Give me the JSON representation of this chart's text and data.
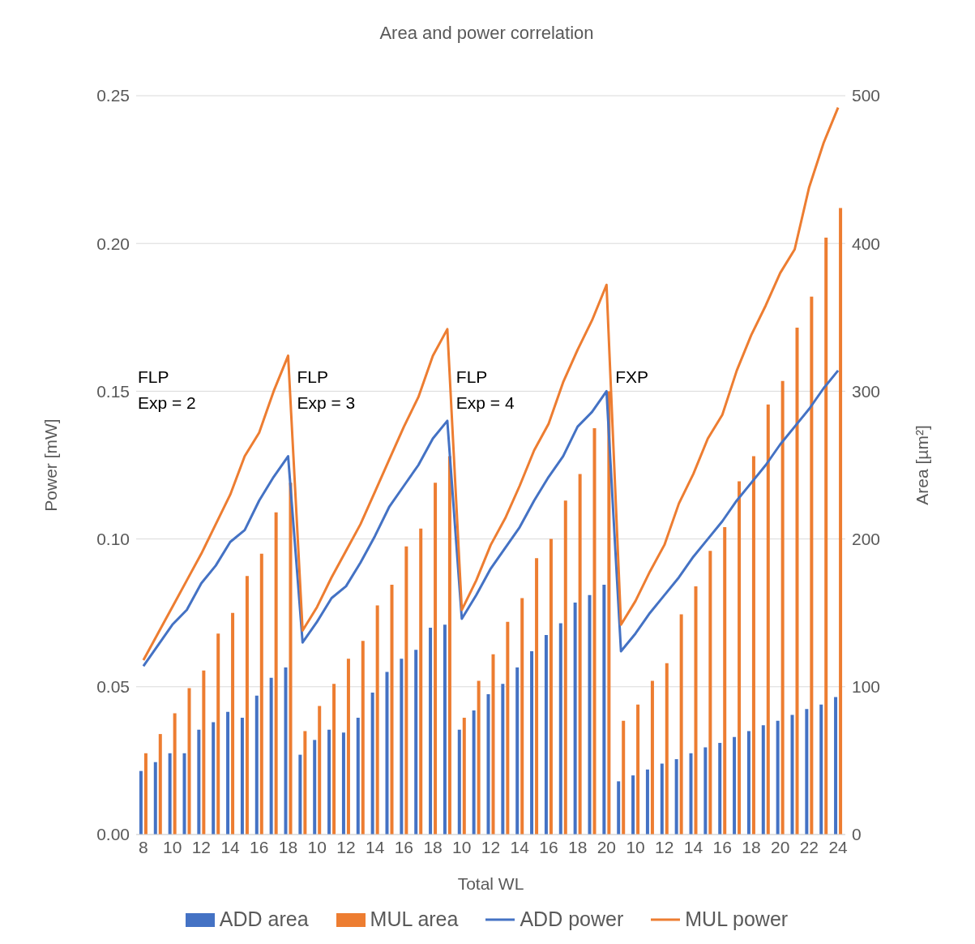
{
  "chart_data": {
    "type": "bar",
    "title": "Area and power correlation",
    "xlabel": "Total WL",
    "ylabel": "Power [mW]",
    "y2label": "Area [µm²]",
    "categories": [
      "8",
      null,
      "10",
      null,
      "12",
      null,
      "14",
      null,
      "16",
      null,
      "18",
      null,
      "10",
      null,
      "12",
      null,
      "14",
      null,
      "16",
      null,
      "18",
      null,
      "10",
      null,
      "12",
      null,
      "14",
      null,
      "16",
      null,
      "18",
      null,
      "20",
      null,
      "10",
      null,
      "12",
      null,
      "14",
      null,
      "16",
      null,
      "18",
      null,
      "20",
      null,
      "22",
      null,
      "24"
    ],
    "series": [
      {
        "name": "ADD area",
        "axis": "y2",
        "color": "#4472c4",
        "values": [
          43,
          49,
          55,
          55,
          71,
          76,
          83,
          79,
          94,
          106,
          113,
          54,
          64,
          71,
          69,
          79,
          96,
          110,
          119,
          125,
          140,
          142,
          71,
          84,
          95,
          102,
          113,
          124,
          135,
          143,
          157,
          162,
          169,
          36,
          40,
          44,
          48,
          51,
          55,
          59,
          62,
          66,
          70,
          74,
          77,
          81,
          85,
          88,
          93
        ]
      },
      {
        "name": "MUL area",
        "axis": "y2",
        "color": "#ed7d31",
        "values": [
          55,
          68,
          82,
          99,
          111,
          136,
          150,
          175,
          190,
          218,
          238,
          70,
          87,
          102,
          119,
          131,
          155,
          169,
          195,
          207,
          238,
          256,
          79,
          104,
          122,
          144,
          160,
          187,
          200,
          226,
          244,
          275,
          300,
          77,
          88,
          104,
          116,
          149,
          168,
          192,
          208,
          239,
          256,
          291,
          307,
          343,
          364,
          404,
          424
        ]
      },
      {
        "name": "ADD power",
        "type": "line",
        "color": "#4472c4",
        "values": [
          0.057,
          0.064,
          0.071,
          0.076,
          0.085,
          0.091,
          0.099,
          0.103,
          0.113,
          0.121,
          0.128,
          0.065,
          0.072,
          0.08,
          0.084,
          0.092,
          0.101,
          0.111,
          0.118,
          0.125,
          0.134,
          0.14,
          0.073,
          0.081,
          0.09,
          0.097,
          0.104,
          0.113,
          0.121,
          0.128,
          0.138,
          0.143,
          0.15,
          0.062,
          0.068,
          0.075,
          0.081,
          0.087,
          0.094,
          0.1,
          0.106,
          0.113,
          0.119,
          0.125,
          0.132,
          0.138,
          0.144,
          0.151,
          0.157
        ]
      },
      {
        "name": "MUL power",
        "type": "line",
        "color": "#ed7d31",
        "values": [
          0.059,
          0.068,
          0.077,
          0.086,
          0.095,
          0.105,
          0.115,
          0.128,
          0.136,
          0.15,
          0.162,
          0.069,
          0.077,
          0.087,
          0.096,
          0.105,
          0.116,
          0.127,
          0.138,
          0.148,
          0.162,
          0.171,
          0.076,
          0.086,
          0.098,
          0.107,
          0.118,
          0.13,
          0.139,
          0.153,
          0.164,
          0.174,
          0.186,
          0.071,
          0.079,
          0.089,
          0.098,
          0.112,
          0.122,
          0.134,
          0.142,
          0.157,
          0.169,
          0.179,
          0.19,
          0.198,
          0.219,
          0.234,
          0.246
        ]
      }
    ],
    "ylim": [
      0,
      0.25
    ],
    "yticks": [
      {
        "value": 0,
        "label": "0.00"
      },
      {
        "value": 0.05,
        "label": "0.05"
      },
      {
        "value": 0.1,
        "label": "0.10"
      },
      {
        "value": 0.15,
        "label": "0.15"
      },
      {
        "value": 0.2,
        "label": "0.20"
      },
      {
        "value": 0.25,
        "label": "0.25"
      }
    ],
    "y2lim": [
      0,
      500
    ],
    "y2ticks": [
      0,
      100,
      200,
      300,
      400,
      500
    ],
    "annotations": [
      "FLP\nExp = 2",
      "FLP\nExp = 3",
      "FLP\nExp = 4",
      "FXP"
    ],
    "grid": "y",
    "legend": "bottom",
    "marker": "none",
    "line_style": "solid"
  }
}
